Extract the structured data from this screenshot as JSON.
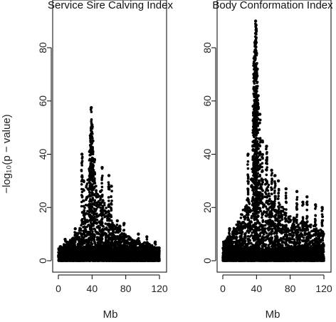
{
  "y_axis_label": "−log₁₀(p − value)",
  "y_tick_labels": [
    "0",
    "20",
    "40",
    "60",
    "80"
  ],
  "x_tick_labels": [
    "0",
    "40",
    "80",
    "120"
  ],
  "colors": {
    "points": "#000000",
    "axis": "#000000",
    "background": "#ffffff"
  },
  "chart_data": [
    {
      "type": "scatter",
      "title": "Service Sire Calving Index",
      "xlabel": "Mb",
      "ylabel": "−log₁₀(p − value)",
      "xlim": [
        0,
        122
      ],
      "ylim": [
        0,
        92
      ],
      "x_ticks": [
        0,
        40,
        80,
        120
      ],
      "y_ticks": [
        0,
        20,
        40,
        60,
        80
      ],
      "max_point": {
        "x": 39,
        "y": 57.5
      },
      "peaks": [
        {
          "x": 39,
          "y": 57.5
        },
        {
          "x": 40,
          "y": 51
        },
        {
          "x": 38,
          "y": 47
        },
        {
          "x": 41,
          "y": 45
        },
        {
          "x": 37,
          "y": 41
        },
        {
          "x": 28,
          "y": 40
        },
        {
          "x": 43,
          "y": 38
        },
        {
          "x": 52,
          "y": 35
        },
        {
          "x": 60,
          "y": 32
        },
        {
          "x": 30,
          "y": 30
        },
        {
          "x": 63,
          "y": 28
        },
        {
          "x": 50,
          "y": 26
        },
        {
          "x": 70,
          "y": 15
        },
        {
          "x": 78,
          "y": 14
        },
        {
          "x": 73,
          "y": 13
        },
        {
          "x": 20,
          "y": 12
        },
        {
          "x": 95,
          "y": 10
        },
        {
          "x": 105,
          "y": 9
        },
        {
          "x": 8,
          "y": 8
        },
        {
          "x": 115,
          "y": 7
        }
      ],
      "envelope": {
        "x": [
          0,
          5,
          10,
          15,
          20,
          25,
          30,
          33,
          36,
          38,
          40,
          42,
          45,
          48,
          52,
          56,
          60,
          65,
          70,
          75,
          80,
          85,
          90,
          95,
          100,
          105,
          110,
          115,
          120
        ],
        "y": [
          5,
          6,
          7,
          8,
          10,
          12,
          18,
          28,
          34,
          38,
          40,
          36,
          30,
          25,
          24,
          21,
          18,
          14,
          12,
          11,
          10,
          9,
          8,
          8,
          7,
          7,
          6,
          5,
          5
        ]
      }
    },
    {
      "type": "scatter",
      "title": "Body Conformation Index",
      "xlabel": "Mb",
      "ylabel": "−log₁₀(p − value)",
      "xlim": [
        0,
        122
      ],
      "ylim": [
        0,
        92
      ],
      "x_ticks": [
        0,
        40,
        80,
        120
      ],
      "y_ticks": [
        0,
        20,
        40,
        60,
        80
      ],
      "max_point": {
        "x": 39,
        "y": 90
      },
      "peaks": [
        {
          "x": 39,
          "y": 90
        },
        {
          "x": 39.5,
          "y": 88.5
        },
        {
          "x": 38,
          "y": 82
        },
        {
          "x": 40,
          "y": 78
        },
        {
          "x": 37,
          "y": 76
        },
        {
          "x": 41,
          "y": 72
        },
        {
          "x": 38.5,
          "y": 65
        },
        {
          "x": 42,
          "y": 62
        },
        {
          "x": 36,
          "y": 58
        },
        {
          "x": 44,
          "y": 55
        },
        {
          "x": 47,
          "y": 45
        },
        {
          "x": 52,
          "y": 43
        },
        {
          "x": 30,
          "y": 40
        },
        {
          "x": 58,
          "y": 34
        },
        {
          "x": 62,
          "y": 32
        },
        {
          "x": 66,
          "y": 30
        },
        {
          "x": 75,
          "y": 27
        },
        {
          "x": 88,
          "y": 26
        },
        {
          "x": 100,
          "y": 24
        },
        {
          "x": 95,
          "y": 22
        },
        {
          "x": 110,
          "y": 21
        },
        {
          "x": 118,
          "y": 20
        },
        {
          "x": 20,
          "y": 14
        },
        {
          "x": 8,
          "y": 12
        }
      ],
      "envelope": {
        "x": [
          0,
          5,
          10,
          15,
          20,
          25,
          30,
          33,
          36,
          38,
          40,
          42,
          45,
          48,
          52,
          56,
          60,
          65,
          70,
          75,
          80,
          85,
          90,
          95,
          100,
          105,
          110,
          115,
          120
        ],
        "y": [
          7,
          9,
          11,
          13,
          16,
          20,
          26,
          32,
          38,
          42,
          44,
          40,
          34,
          30,
          32,
          28,
          25,
          22,
          21,
          18,
          17,
          16,
          15,
          15,
          14,
          14,
          13,
          12,
          12
        ]
      }
    }
  ]
}
